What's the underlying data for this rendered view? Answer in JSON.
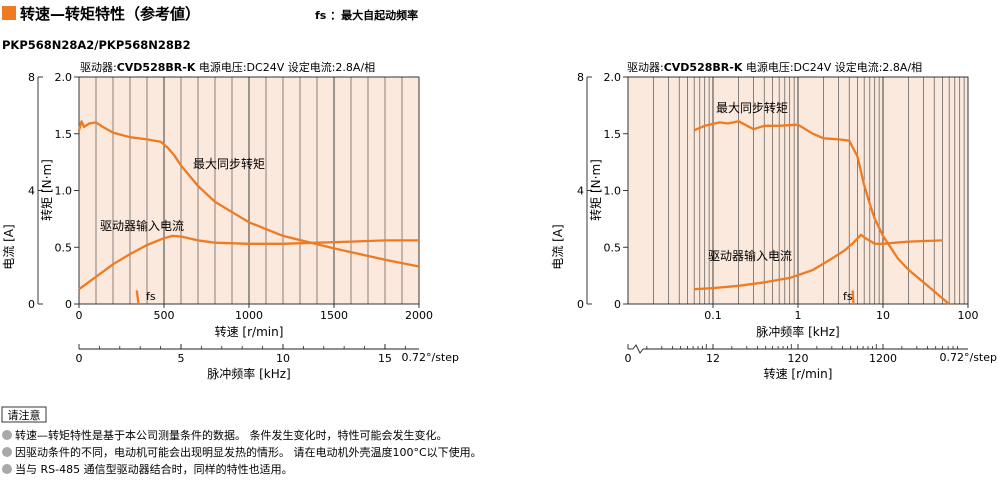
{
  "header": {
    "title": "转速—转矩特性（参考値）",
    "fs_note": "fs ：最大自起动频率",
    "model": "PKP568N28A2/PKP568N28B2"
  },
  "colors": {
    "accent": "#ee7b22",
    "panel_bg": "#fbe9de",
    "grid": "#2b2b2b",
    "note_dot": "#a9a9a9"
  },
  "driver_line": {
    "label_a": "驱动器:",
    "model": "CVD528BR-K",
    "label_b": " 电源电压:DC24V  设定电流:2.8A/相"
  },
  "chart_data": [
    {
      "type": "line",
      "x_scale": "linear",
      "xlim": [
        0,
        2000
      ],
      "x_ticks": [
        0,
        500,
        1000,
        1500,
        2000
      ],
      "x_tick_labels": [
        "0",
        "500",
        "1000",
        "1500",
        "2000"
      ],
      "xlabel": "转速 [r/min]",
      "ylabel": "转矩 [N·m]",
      "ylim": [
        0,
        2.0
      ],
      "y_ticks": [
        0,
        0.5,
        1.0,
        1.5,
        2.0
      ],
      "y_tick_labels": [
        "0",
        "0.5",
        "1.0",
        "1.5",
        "2.0"
      ],
      "y2label": "电流 [A]",
      "y2lim": [
        0,
        8
      ],
      "y2_ticks": [
        0,
        4,
        8
      ],
      "y2_tick_labels": [
        "0",
        "4",
        "8"
      ],
      "second_axis": {
        "label": "脉冲频率 [kHz]",
        "ticks": [
          0,
          5,
          10,
          15
        ],
        "tick_labels": [
          "0",
          "5",
          "10",
          "15"
        ],
        "suffix": "0.72°/step",
        "range": [
          0,
          16.67
        ]
      },
      "grid": "vertical",
      "series": [
        {
          "name": "最大同步转矩",
          "axis": "torque",
          "x": [
            0,
            15,
            30,
            60,
            100,
            140,
            200,
            300,
            400,
            480,
            520,
            560,
            600,
            700,
            800,
            1000,
            1200,
            1500,
            1800,
            2000
          ],
          "y": [
            1.53,
            1.61,
            1.56,
            1.59,
            1.6,
            1.56,
            1.51,
            1.47,
            1.45,
            1.43,
            1.38,
            1.31,
            1.22,
            1.04,
            0.9,
            0.72,
            0.6,
            0.49,
            0.39,
            0.33
          ]
        },
        {
          "name": "驱动器输入电流",
          "axis": "current",
          "x": [
            0,
            100,
            200,
            300,
            400,
            500,
            550,
            600,
            700,
            800,
            1000,
            1200,
            1400,
            1600,
            1800,
            2000
          ],
          "y": [
            0.52,
            0.96,
            1.4,
            1.76,
            2.08,
            2.32,
            2.4,
            2.38,
            2.24,
            2.16,
            2.12,
            2.12,
            2.16,
            2.2,
            2.24,
            2.24
          ]
        }
      ],
      "fs_label": "fs",
      "fs_x": [
        340,
        350
      ],
      "fs_y": [
        0.12,
        0.0
      ]
    },
    {
      "type": "line",
      "x_scale": "log",
      "xlim": [
        0.01,
        100
      ],
      "x_ticks": [
        0.1,
        1,
        10,
        100
      ],
      "x_tick_labels": [
        "0.1",
        "1",
        "10",
        "100"
      ],
      "xlabel": "脉冲频率 [kHz]",
      "ylabel": "转矩 [N·m]",
      "ylim": [
        0,
        2.0
      ],
      "y_ticks": [
        0,
        0.5,
        1.0,
        1.5,
        2.0
      ],
      "y_tick_labels": [
        "0",
        "0.5",
        "1.0",
        "1.5",
        "2.0"
      ],
      "y2label": "电流 [A]",
      "y2lim": [
        0,
        8
      ],
      "y2_ticks": [
        0,
        4,
        8
      ],
      "y2_tick_labels": [
        "0",
        "4",
        "8"
      ],
      "second_axis": {
        "label": "转速 [r/min]",
        "ticks": [
          12,
          120,
          1200
        ],
        "tick_labels": [
          "12",
          "120",
          "1200"
        ],
        "zero_label": "0",
        "suffix": "0.72°/step"
      },
      "grid": "vertical-log",
      "series": [
        {
          "name": "最大同步转矩",
          "axis": "torque",
          "x": [
            0.06,
            0.08,
            0.12,
            0.15,
            0.2,
            0.3,
            0.4,
            0.6,
            1.0,
            1.5,
            2.0,
            3.0,
            4.0,
            5.0,
            6.0,
            7.0,
            8.0,
            10.0,
            15.0,
            20.0,
            30.0,
            60.0
          ],
          "y": [
            1.53,
            1.57,
            1.6,
            1.59,
            1.61,
            1.54,
            1.57,
            1.57,
            1.58,
            1.5,
            1.46,
            1.45,
            1.44,
            1.3,
            1.05,
            0.88,
            0.75,
            0.6,
            0.4,
            0.3,
            0.19,
            0.0
          ]
        },
        {
          "name": "驱动器输入电流",
          "axis": "current",
          "x": [
            0.06,
            0.1,
            0.2,
            0.4,
            0.8,
            1.5,
            2.5,
            3.5,
            4.5,
            5.5,
            6.5,
            8.0,
            10.0,
            14.0,
            20.0,
            50.0
          ],
          "y": [
            0.52,
            0.56,
            0.64,
            0.76,
            0.92,
            1.2,
            1.6,
            1.88,
            2.16,
            2.44,
            2.28,
            2.12,
            2.12,
            2.16,
            2.2,
            2.24
          ]
        }
      ],
      "fs_label": "fs",
      "fs_x": [
        4.4,
        4.5
      ],
      "fs_y": [
        0.12,
        0.0
      ]
    }
  ],
  "notes": {
    "title": "请注意",
    "items": [
      "转速—转矩特性是基于本公司测量条件的数据。 条件发生变化时，特性可能会发生变化。",
      "因驱动条件的不同，电动机可能会出现明显发热的情形。 请在电动机外壳温度100°C以下使用。",
      "当与 RS-485 通信型驱动器结合时，同样的特性也适用。"
    ]
  }
}
